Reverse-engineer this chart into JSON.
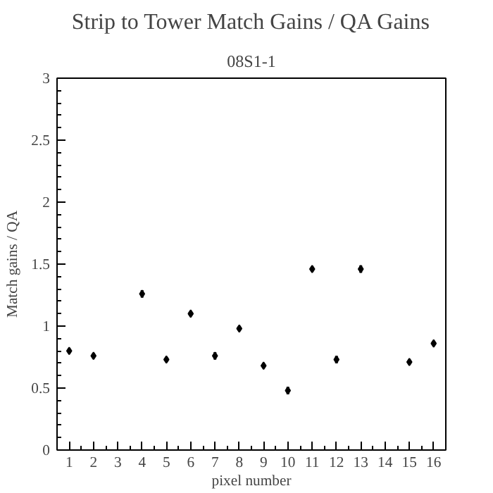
{
  "chart_data": {
    "type": "scatter",
    "title": "Strip to Tower Match Gains / QA Gains",
    "subtitle": "08S1-1",
    "xlabel": "pixel number",
    "ylabel": "Match gains / QA",
    "x": [
      1,
      2,
      4,
      5,
      6,
      7,
      8,
      9,
      10,
      11,
      12,
      13,
      15,
      16
    ],
    "series": [
      {
        "color": "#000000",
        "values": [
          0.8,
          0.76,
          1.26,
          0.73,
          1.1,
          0.76,
          0.98,
          0.68,
          0.48,
          1.46,
          0.73,
          1.46,
          0.71,
          0.86
        ],
        "errors": [
          0.02,
          0.02,
          0.03,
          0.02,
          0.02,
          0.03,
          0.02,
          0.02,
          0.03,
          0.02,
          0.03,
          0.03,
          0.02,
          0.02
        ]
      }
    ],
    "xlim": [
      0.5,
      16.5
    ],
    "xticks": [
      1,
      2,
      3,
      4,
      5,
      6,
      7,
      8,
      9,
      10,
      11,
      12,
      13,
      14,
      15,
      16
    ],
    "ylim": [
      0,
      3
    ],
    "yticks": [
      0,
      0.5,
      1,
      1.5,
      2,
      2.5,
      3
    ],
    "grid": false,
    "marker": "diamond"
  }
}
